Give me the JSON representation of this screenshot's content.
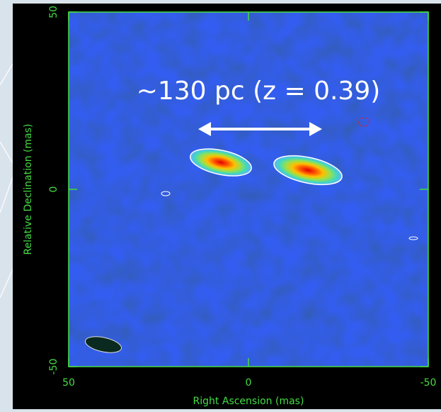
{
  "chart_data": {
    "type": "image",
    "annotation": "~130 pc (z = 0.39)",
    "xlabel": "Right Ascension  (mas)",
    "ylabel": "Relative Declination  (mas)",
    "xlim": [
      50,
      -50
    ],
    "xticks": [
      50,
      0,
      -50
    ],
    "ylim": [
      -50,
      50
    ],
    "yticks": [
      -50,
      0,
      50
    ],
    "axis_color": "#44dd44"
  }
}
